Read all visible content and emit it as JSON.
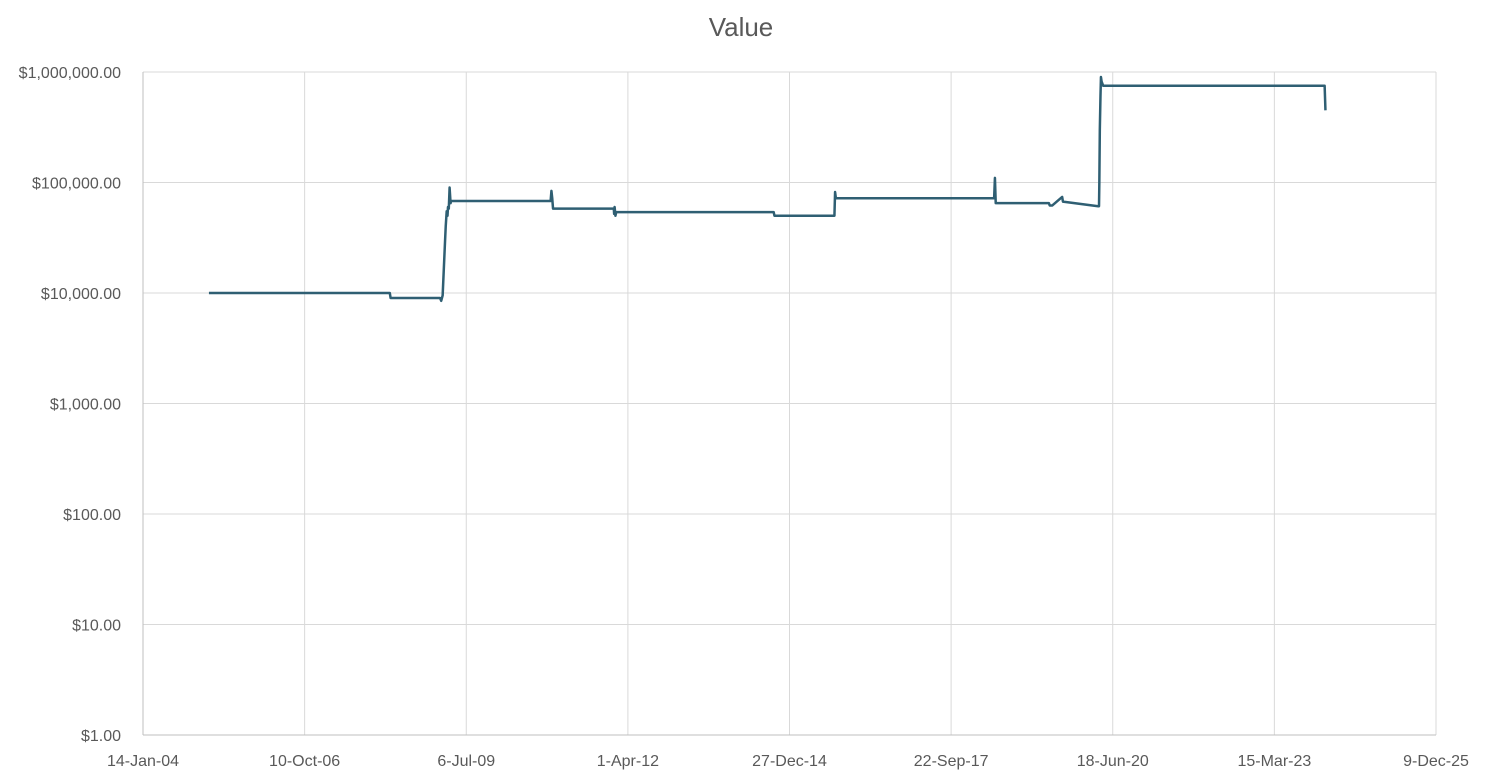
{
  "chart_data": {
    "type": "line",
    "title": "Value",
    "xlabel": "",
    "ylabel": "",
    "y_scale": "log",
    "ylim": [
      1,
      1000000
    ],
    "xlim": [
      "2004-01-14",
      "2025-12-09"
    ],
    "x_ticks": [
      "14-Jan-04",
      "10-Oct-06",
      "6-Jul-09",
      "1-Apr-12",
      "27-Dec-14",
      "22-Sep-17",
      "18-Jun-20",
      "15-Mar-23",
      "9-Dec-25"
    ],
    "x_tick_dates": [
      "2004-01-14",
      "2006-10-10",
      "2009-07-06",
      "2012-04-01",
      "2014-12-27",
      "2017-09-22",
      "2020-06-18",
      "2023-03-15",
      "2025-12-09"
    ],
    "y_ticks": [
      "$1.00",
      "$10.00",
      "$100.00",
      "$1,000.00",
      "$10,000.00",
      "$100,000.00",
      "$1,000,000.00"
    ],
    "y_tick_values": [
      1,
      10,
      100,
      1000,
      10000,
      100000,
      1000000
    ],
    "grid": true,
    "legend": "none",
    "series_color": "#2f5f73",
    "series": [
      {
        "x": [
          "2005-02-25",
          "2008-03-20",
          "2008-03-25",
          "2009-01-25",
          "2009-02-01",
          "2009-02-10",
          "2009-02-25",
          "2009-03-01",
          "2009-03-07",
          "2009-03-12",
          "2009-03-15",
          "2009-03-20",
          "2009-03-25",
          "2009-03-31",
          "2009-04-03",
          "2009-04-10",
          "2009-04-15",
          "2010-12-10",
          "2010-12-15",
          "2010-12-20",
          "2010-12-25",
          "2012-01-05",
          "2012-01-07",
          "2012-01-10",
          "2012-01-15",
          "2012-01-20",
          "2014-09-20",
          "2014-09-25",
          "2015-10-01",
          "2015-10-05",
          "2015-10-10",
          "2018-06-15",
          "2018-06-20",
          "2018-06-25",
          "2019-05-20",
          "2019-05-25",
          "2019-06-10",
          "2019-08-10",
          "2019-08-15",
          "2019-08-20",
          "2020-03-20",
          "2020-03-25",
          "2020-03-27",
          "2020-03-30",
          "2020-04-03",
          "2020-04-06",
          "2020-04-10",
          "2020-04-20",
          "2024-01-20",
          "2024-01-25"
        ],
        "y": [
          10000,
          10000,
          9000,
          9000,
          8500,
          9500,
          30000,
          40000,
          55000,
          50000,
          60000,
          58000,
          90000,
          65000,
          68000,
          68000,
          68000,
          68000,
          84000,
          72000,
          58000,
          58000,
          52000,
          60000,
          50000,
          54000,
          54000,
          50000,
          50000,
          82000,
          72000,
          72000,
          110000,
          65000,
          65000,
          62000,
          62000,
          74000,
          67000,
          67000,
          61000,
          61000,
          100000,
          300000,
          600000,
          900000,
          820000,
          750000,
          750000,
          450000
        ]
      }
    ]
  }
}
